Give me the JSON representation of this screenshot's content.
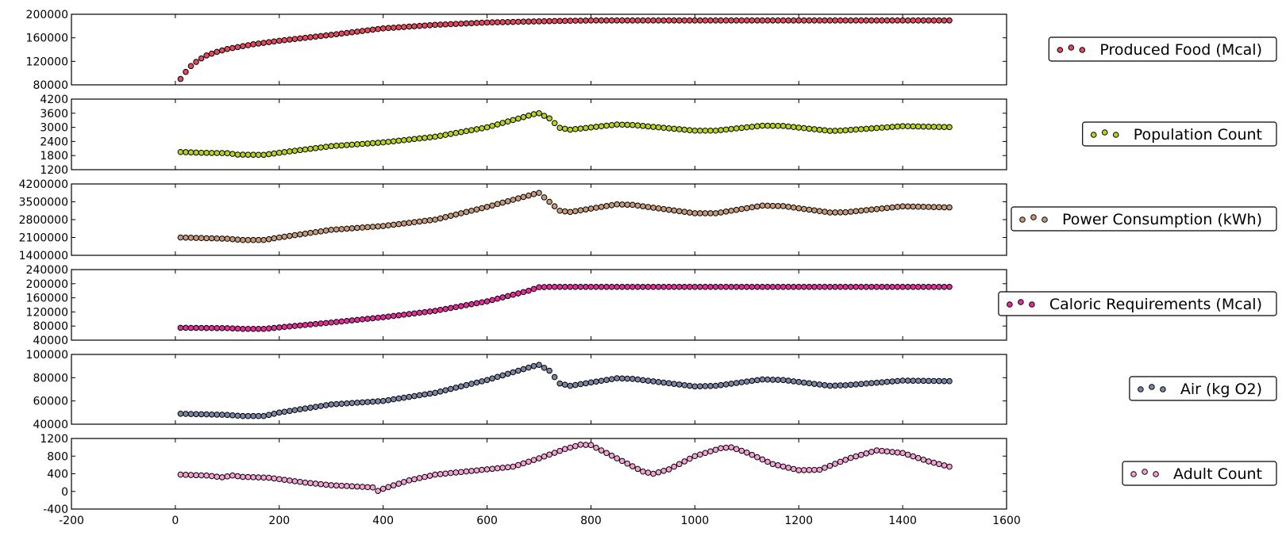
{
  "chart_data": [
    {
      "type": "scatter",
      "legend": "top-right",
      "series": [
        {
          "name": "Produced Food (Mcal)",
          "color": "#e8485c",
          "x_range": [
            10,
            1490
          ],
          "x_step": 10,
          "y_knots": [
            [
              10,
              90000
            ],
            [
              20,
              102000
            ],
            [
              30,
              112000
            ],
            [
              40,
              119000
            ],
            [
              50,
              125000
            ],
            [
              60,
              130000
            ],
            [
              80,
              136000
            ],
            [
              100,
              141000
            ],
            [
              150,
              149000
            ],
            [
              200,
              155000
            ],
            [
              300,
              165000
            ],
            [
              400,
              176000
            ],
            [
              500,
              182000
            ],
            [
              600,
              186000
            ],
            [
              700,
              188000
            ],
            [
              800,
              189500
            ],
            [
              1490,
              189500
            ]
          ]
        }
      ],
      "xlim": [
        -200,
        1600
      ],
      "ylim": [
        80000,
        200000
      ],
      "yticks": [
        "80000",
        "120000",
        "160000",
        "200000"
      ]
    },
    {
      "type": "scatter",
      "legend": "top-right",
      "series": [
        {
          "name": "Population Count",
          "color": "#b5d41f",
          "x_range": [
            10,
            1490
          ],
          "x_step": 10,
          "y_knots": [
            [
              10,
              1950
            ],
            [
              50,
              1920
            ],
            [
              100,
              1900
            ],
            [
              120,
              1840
            ],
            [
              170,
              1830
            ],
            [
              200,
              1920
            ],
            [
              300,
              2200
            ],
            [
              400,
              2360
            ],
            [
              500,
              2600
            ],
            [
              600,
              3000
            ],
            [
              690,
              3560
            ],
            [
              700,
              3600
            ],
            [
              720,
              3380
            ],
            [
              740,
              2980
            ],
            [
              760,
              2900
            ],
            [
              850,
              3120
            ],
            [
              880,
              3100
            ],
            [
              1000,
              2860
            ],
            [
              1040,
              2860
            ],
            [
              1130,
              3070
            ],
            [
              1170,
              3060
            ],
            [
              1260,
              2850
            ],
            [
              1280,
              2860
            ],
            [
              1400,
              3050
            ],
            [
              1490,
              3010
            ]
          ]
        }
      ],
      "xlim": [
        -200,
        1600
      ],
      "ylim": [
        1200,
        4200
      ],
      "yticks": [
        "1200",
        "1800",
        "2400",
        "3000",
        "3600",
        "4200"
      ]
    },
    {
      "type": "scatter",
      "legend": "top-right",
      "series": [
        {
          "name": "Power Consumption (kWh)",
          "color": "#c89a7c",
          "x_range": [
            10,
            1490
          ],
          "x_step": 10,
          "y_knots": [
            [
              10,
              2100000
            ],
            [
              100,
              2050000
            ],
            [
              130,
              2000000
            ],
            [
              170,
              2000000
            ],
            [
              200,
              2100000
            ],
            [
              300,
              2400000
            ],
            [
              400,
              2550000
            ],
            [
              500,
              2800000
            ],
            [
              600,
              3300000
            ],
            [
              690,
              3800000
            ],
            [
              700,
              3850000
            ],
            [
              720,
              3500000
            ],
            [
              740,
              3150000
            ],
            [
              760,
              3100000
            ],
            [
              850,
              3400000
            ],
            [
              880,
              3380000
            ],
            [
              1000,
              3050000
            ],
            [
              1040,
              3050000
            ],
            [
              1130,
              3350000
            ],
            [
              1170,
              3330000
            ],
            [
              1260,
              3080000
            ],
            [
              1290,
              3090000
            ],
            [
              1400,
              3320000
            ],
            [
              1490,
              3280000
            ]
          ]
        }
      ],
      "xlim": [
        -200,
        1600
      ],
      "ylim": [
        1400000,
        4200000
      ],
      "yticks": [
        "1400000",
        "2100000",
        "2800000",
        "3500000",
        "4200000"
      ]
    },
    {
      "type": "scatter",
      "legend": "top-right",
      "series": [
        {
          "name": "Caloric Requirements (Mcal)",
          "color": "#e82c9c",
          "x_range": [
            10,
            1490
          ],
          "x_step": 10,
          "y_knots": [
            [
              10,
              75000
            ],
            [
              100,
              74000
            ],
            [
              130,
              72000
            ],
            [
              170,
              72000
            ],
            [
              200,
              76000
            ],
            [
              300,
              90000
            ],
            [
              400,
              105000
            ],
            [
              500,
              123000
            ],
            [
              600,
              150000
            ],
            [
              680,
              180000
            ],
            [
              700,
              190000
            ],
            [
              720,
              191000
            ],
            [
              1490,
              191000
            ]
          ]
        }
      ],
      "xlim": [
        -200,
        1600
      ],
      "ylim": [
        40000,
        240000
      ],
      "yticks": [
        "40000",
        "80000",
        "120000",
        "160000",
        "200000",
        "240000"
      ]
    },
    {
      "type": "scatter",
      "legend": "top-right",
      "series": [
        {
          "name": "Air (kg O2)",
          "color": "#7c85a6",
          "x_range": [
            10,
            1490
          ],
          "x_step": 10,
          "y_knots": [
            [
              10,
              49000
            ],
            [
              100,
              48000
            ],
            [
              130,
              47000
            ],
            [
              170,
              47000
            ],
            [
              200,
              50000
            ],
            [
              300,
              57000
            ],
            [
              400,
              60000
            ],
            [
              500,
              67000
            ],
            [
              600,
              78000
            ],
            [
              690,
              90000
            ],
            [
              700,
              91000
            ],
            [
              720,
              86000
            ],
            [
              740,
              75000
            ],
            [
              760,
              73000
            ],
            [
              850,
              79500
            ],
            [
              880,
              79000
            ],
            [
              1000,
              72500
            ],
            [
              1040,
              73000
            ],
            [
              1130,
              78500
            ],
            [
              1170,
              78000
            ],
            [
              1260,
              73000
            ],
            [
              1290,
              73500
            ],
            [
              1400,
              77500
            ],
            [
              1490,
              77000
            ]
          ]
        }
      ],
      "xlim": [
        -200,
        1600
      ],
      "ylim": [
        40000,
        100000
      ],
      "yticks": [
        "40000",
        "60000",
        "80000",
        "100000"
      ]
    },
    {
      "type": "scatter",
      "legend": "top-right",
      "series": [
        {
          "name": "Adult Count",
          "color": "#f7a2d6",
          "x_range": [
            10,
            1490
          ],
          "x_step": 10,
          "y_knots": [
            [
              10,
              380
            ],
            [
              60,
              360
            ],
            [
              90,
              320
            ],
            [
              110,
              360
            ],
            [
              130,
              330
            ],
            [
              180,
              310
            ],
            [
              250,
              200
            ],
            [
              300,
              140
            ],
            [
              350,
              110
            ],
            [
              380,
              90
            ],
            [
              390,
              10
            ],
            [
              400,
              60
            ],
            [
              450,
              250
            ],
            [
              500,
              380
            ],
            [
              600,
              500
            ],
            [
              650,
              560
            ],
            [
              700,
              750
            ],
            [
              750,
              960
            ],
            [
              780,
              1060
            ],
            [
              800,
              1050
            ],
            [
              850,
              750
            ],
            [
              900,
              450
            ],
            [
              920,
              400
            ],
            [
              950,
              500
            ],
            [
              1000,
              800
            ],
            [
              1050,
              980
            ],
            [
              1070,
              1000
            ],
            [
              1100,
              880
            ],
            [
              1150,
              620
            ],
            [
              1200,
              480
            ],
            [
              1240,
              490
            ],
            [
              1300,
              760
            ],
            [
              1350,
              930
            ],
            [
              1400,
              870
            ],
            [
              1450,
              680
            ],
            [
              1490,
              560
            ]
          ]
        }
      ],
      "xlim": [
        -200,
        1600
      ],
      "ylim": [
        -400,
        1200
      ],
      "yticks": [
        "-400",
        "0",
        "400",
        "800",
        "1200"
      ],
      "xticks": [
        "-200",
        "0",
        "200",
        "400",
        "600",
        "800",
        "1000",
        "1200",
        "1400",
        "1600"
      ]
    }
  ]
}
